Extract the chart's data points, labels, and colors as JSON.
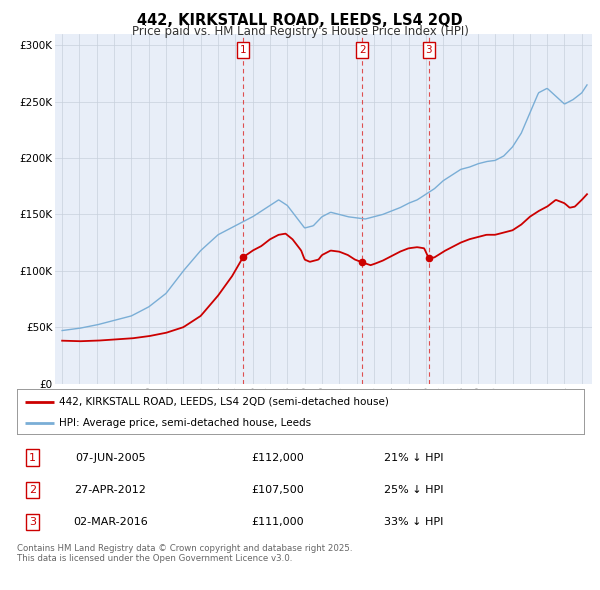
{
  "title": "442, KIRKSTALL ROAD, LEEDS, LS4 2QD",
  "subtitle": "Price paid vs. HM Land Registry's House Price Index (HPI)",
  "legend_line1": "442, KIRKSTALL ROAD, LEEDS, LS4 2QD (semi-detached house)",
  "legend_line2": "HPI: Average price, semi-detached house, Leeds",
  "red_color": "#cc0000",
  "blue_color": "#7aaed6",
  "bg_color": "#e8eef8",
  "grid_color": "#c8d0dc",
  "annotation_box_color": "#cc0000",
  "purchases": [
    {
      "num": 1,
      "date": "07-JUN-2005",
      "price": "£112,000",
      "pct": "21% ↓ HPI",
      "x_year": 2005.44,
      "y": 112000
    },
    {
      "num": 2,
      "date": "27-APR-2012",
      "price": "£107,500",
      "pct": "25% ↓ HPI",
      "x_year": 2012.32,
      "y": 107500
    },
    {
      "num": 3,
      "date": "02-MAR-2016",
      "price": "£111,000",
      "pct": "33% ↓ HPI",
      "x_year": 2016.17,
      "y": 111000
    }
  ],
  "table_rows": [
    {
      "num": 1,
      "date": "07-JUN-2005",
      "price": "£112,000",
      "pct": "21% ↓ HPI"
    },
    {
      "num": 2,
      "date": "27-APR-2012",
      "price": "£107,500",
      "pct": "25% ↓ HPI"
    },
    {
      "num": 3,
      "date": "02-MAR-2016",
      "price": "£111,000",
      "pct": "33% ↓ HPI"
    }
  ],
  "footer": "Contains HM Land Registry data © Crown copyright and database right 2025.\nThis data is licensed under the Open Government Licence v3.0.",
  "ylim": [
    0,
    310000
  ],
  "xlim_start": 1994.6,
  "xlim_end": 2025.6,
  "hpi_points": [
    [
      1995.0,
      47000
    ],
    [
      1996.0,
      49000
    ],
    [
      1997.0,
      52000
    ],
    [
      1998.0,
      56000
    ],
    [
      1999.0,
      60000
    ],
    [
      2000.0,
      68000
    ],
    [
      2001.0,
      80000
    ],
    [
      2002.0,
      100000
    ],
    [
      2003.0,
      118000
    ],
    [
      2004.0,
      132000
    ],
    [
      2005.0,
      140000
    ],
    [
      2006.0,
      148000
    ],
    [
      2007.0,
      158000
    ],
    [
      2007.5,
      163000
    ],
    [
      2008.0,
      158000
    ],
    [
      2008.5,
      148000
    ],
    [
      2009.0,
      138000
    ],
    [
      2009.5,
      140000
    ],
    [
      2010.0,
      148000
    ],
    [
      2010.5,
      152000
    ],
    [
      2011.0,
      150000
    ],
    [
      2011.5,
      148000
    ],
    [
      2012.0,
      147000
    ],
    [
      2012.5,
      146000
    ],
    [
      2013.0,
      148000
    ],
    [
      2013.5,
      150000
    ],
    [
      2014.0,
      153000
    ],
    [
      2014.5,
      156000
    ],
    [
      2015.0,
      160000
    ],
    [
      2015.5,
      163000
    ],
    [
      2016.0,
      168000
    ],
    [
      2016.5,
      173000
    ],
    [
      2017.0,
      180000
    ],
    [
      2017.5,
      185000
    ],
    [
      2018.0,
      190000
    ],
    [
      2018.5,
      192000
    ],
    [
      2019.0,
      195000
    ],
    [
      2019.5,
      197000
    ],
    [
      2020.0,
      198000
    ],
    [
      2020.5,
      202000
    ],
    [
      2021.0,
      210000
    ],
    [
      2021.5,
      222000
    ],
    [
      2022.0,
      240000
    ],
    [
      2022.5,
      258000
    ],
    [
      2023.0,
      262000
    ],
    [
      2023.5,
      255000
    ],
    [
      2024.0,
      248000
    ],
    [
      2024.5,
      252000
    ],
    [
      2025.0,
      258000
    ],
    [
      2025.3,
      265000
    ]
  ],
  "prop_points": [
    [
      1995.0,
      38000
    ],
    [
      1996.0,
      37500
    ],
    [
      1997.0,
      38000
    ],
    [
      1998.0,
      39000
    ],
    [
      1999.0,
      40000
    ],
    [
      2000.0,
      42000
    ],
    [
      2001.0,
      45000
    ],
    [
      2002.0,
      50000
    ],
    [
      2003.0,
      60000
    ],
    [
      2004.0,
      78000
    ],
    [
      2004.8,
      95000
    ],
    [
      2005.44,
      112000
    ],
    [
      2006.0,
      118000
    ],
    [
      2006.5,
      122000
    ],
    [
      2007.0,
      128000
    ],
    [
      2007.5,
      132000
    ],
    [
      2007.9,
      133000
    ],
    [
      2008.3,
      128000
    ],
    [
      2008.8,
      118000
    ],
    [
      2009.0,
      110000
    ],
    [
      2009.3,
      108000
    ],
    [
      2009.8,
      110000
    ],
    [
      2010.0,
      114000
    ],
    [
      2010.5,
      118000
    ],
    [
      2011.0,
      117000
    ],
    [
      2011.5,
      114000
    ],
    [
      2011.9,
      110000
    ],
    [
      2012.32,
      107500
    ],
    [
      2012.8,
      105000
    ],
    [
      2013.0,
      106000
    ],
    [
      2013.5,
      109000
    ],
    [
      2014.0,
      113000
    ],
    [
      2014.5,
      117000
    ],
    [
      2015.0,
      120000
    ],
    [
      2015.5,
      121000
    ],
    [
      2015.9,
      120000
    ],
    [
      2016.17,
      111000
    ],
    [
      2016.5,
      112000
    ],
    [
      2017.0,
      117000
    ],
    [
      2017.5,
      121000
    ],
    [
      2018.0,
      125000
    ],
    [
      2018.5,
      128000
    ],
    [
      2019.0,
      130000
    ],
    [
      2019.5,
      132000
    ],
    [
      2020.0,
      132000
    ],
    [
      2020.5,
      134000
    ],
    [
      2021.0,
      136000
    ],
    [
      2021.5,
      141000
    ],
    [
      2022.0,
      148000
    ],
    [
      2022.5,
      153000
    ],
    [
      2023.0,
      157000
    ],
    [
      2023.5,
      163000
    ],
    [
      2024.0,
      160000
    ],
    [
      2024.3,
      156000
    ],
    [
      2024.6,
      157000
    ],
    [
      2025.0,
      163000
    ],
    [
      2025.3,
      168000
    ]
  ]
}
